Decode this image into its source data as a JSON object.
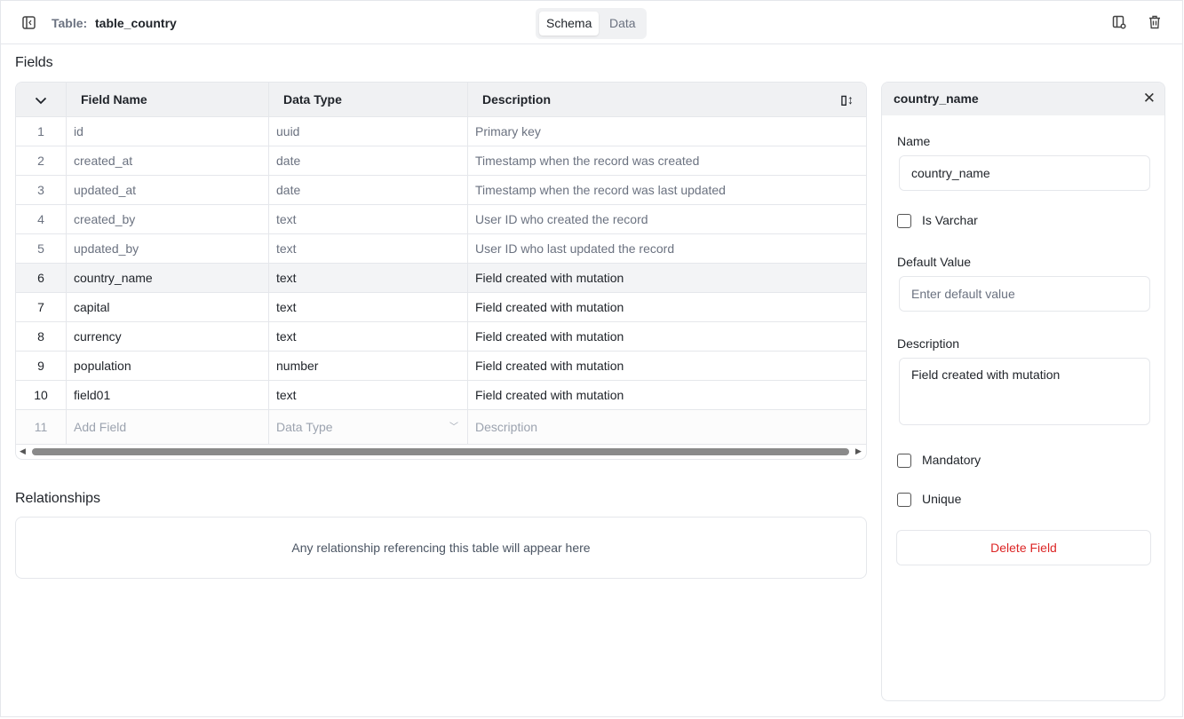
{
  "header": {
    "table_label": "Table:",
    "table_name": "table_country",
    "tabs": [
      "Schema",
      "Data"
    ],
    "active_tab": "Schema"
  },
  "fields": {
    "title": "Fields",
    "columns": [
      "Field Name",
      "Data Type",
      "Description"
    ],
    "rows": [
      {
        "n": "1",
        "name": "id",
        "type": "uuid",
        "desc": "Primary key",
        "system": true
      },
      {
        "n": "2",
        "name": "created_at",
        "type": "date",
        "desc": "Timestamp when the record was created",
        "system": true
      },
      {
        "n": "3",
        "name": "updated_at",
        "type": "date",
        "desc": "Timestamp when the record was last updated",
        "system": true
      },
      {
        "n": "4",
        "name": "created_by",
        "type": "text",
        "desc": "User ID who created the record",
        "system": true
      },
      {
        "n": "5",
        "name": "updated_by",
        "type": "text",
        "desc": "User ID who last updated the record",
        "system": true
      },
      {
        "n": "6",
        "name": "country_name",
        "type": "text",
        "desc": "Field created with mutation",
        "selected": true
      },
      {
        "n": "7",
        "name": "capital",
        "type": "text",
        "desc": "Field created with mutation"
      },
      {
        "n": "8",
        "name": "currency",
        "type": "text",
        "desc": "Field created with mutation"
      },
      {
        "n": "9",
        "name": "population",
        "type": "number",
        "desc": "Field created with mutation"
      },
      {
        "n": "10",
        "name": "field01",
        "type": "text",
        "desc": "Field created with mutation"
      }
    ],
    "add_row": {
      "n": "11",
      "name_placeholder": "Add Field",
      "type_placeholder": "Data Type",
      "desc_placeholder": "Description"
    }
  },
  "relationships": {
    "title": "Relationships",
    "empty": "Any relationship referencing this table will appear here"
  },
  "panel": {
    "title": "country_name",
    "name_label": "Name",
    "name_value": "country_name",
    "varchar_label": "Is Varchar",
    "default_label": "Default Value",
    "default_placeholder": "Enter default value",
    "desc_label": "Description",
    "desc_value": "Field created with mutation",
    "mandatory_label": "Mandatory",
    "unique_label": "Unique",
    "delete_label": "Delete Field"
  },
  "colors": {
    "danger": "#dc2626",
    "header_bg": "#f0f1f3"
  }
}
